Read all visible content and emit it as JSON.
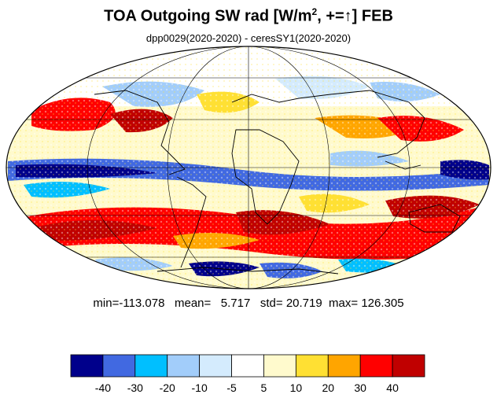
{
  "title": {
    "main": "TOA Outgoing SW rad [W/m",
    "superscript": "2",
    "suffix": ", +=↑] FEB"
  },
  "subtitle": "dpp0029(2020-2020) - ceresSY1(2020-2020)",
  "stats": {
    "min_label": "min=",
    "min": "-113.078",
    "mean_label": "mean=",
    "mean": "5.717",
    "std_label": "std=",
    "std": "20.719",
    "max_label": "max=",
    "max": "126.305"
  },
  "colorbar": {
    "colors": [
      "#00008b",
      "#4169e1",
      "#00bfff",
      "#a2cdfa",
      "#d4ebfd",
      "#ffffff",
      "#fffacd",
      "#ffe033",
      "#ffa500",
      "#ff0000",
      "#c00000"
    ],
    "tick_labels": [
      "-40",
      "-30",
      "-20",
      "-10",
      "-5",
      "5",
      "10",
      "20",
      "30",
      "40"
    ]
  },
  "map": {
    "projection": "Mollweide",
    "land_outline_color": "#000000",
    "graticule_color": "#000000"
  }
}
